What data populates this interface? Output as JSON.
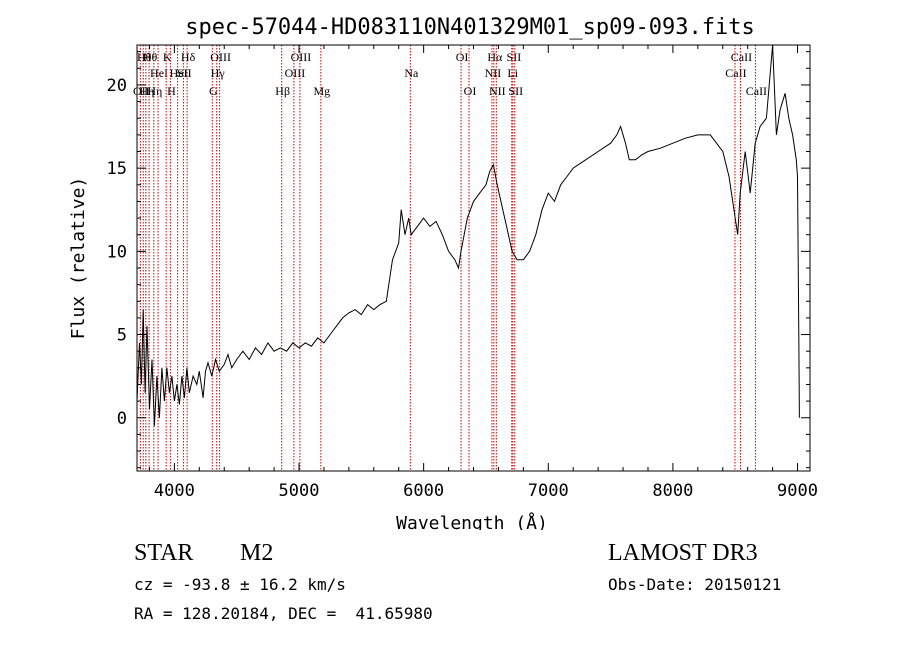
{
  "chart_data": {
    "type": "line",
    "title": "spec-57044-HD083110N401329M01_sp09-093.fits",
    "xlabel": "Wavelength (Å)",
    "ylabel": "Flux (relative)",
    "xlim": [
      3700,
      9100
    ],
    "ylim": [
      -3.2,
      22.4
    ],
    "xticks": [
      4000,
      5000,
      6000,
      7000,
      8000,
      9000
    ],
    "yticks": [
      0,
      5,
      10,
      15,
      20
    ],
    "grid": false,
    "series": [
      {
        "points": [
          [
            3700,
            1.0
          ],
          [
            3720,
            4.5
          ],
          [
            3735,
            2.0
          ],
          [
            3750,
            6.5
          ],
          [
            3765,
            1.5
          ],
          [
            3780,
            5.5
          ],
          [
            3800,
            0.5
          ],
          [
            3820,
            3.5
          ],
          [
            3840,
            -0.5
          ],
          [
            3860,
            2.5
          ],
          [
            3880,
            0.0
          ],
          [
            3900,
            3.0
          ],
          [
            3920,
            1.0
          ],
          [
            3940,
            3.0
          ],
          [
            3960,
            1.5
          ],
          [
            3980,
            2.5
          ],
          [
            4000,
            1.0
          ],
          [
            4020,
            2.0
          ],
          [
            4040,
            0.8
          ],
          [
            4060,
            2.5
          ],
          [
            4080,
            1.2
          ],
          [
            4100,
            3.0
          ],
          [
            4120,
            1.5
          ],
          [
            4150,
            2.5
          ],
          [
            4180,
            2.0
          ],
          [
            4200,
            2.8
          ],
          [
            4230,
            1.2
          ],
          [
            4250,
            2.8
          ],
          [
            4270,
            3.3
          ],
          [
            4300,
            2.5
          ],
          [
            4330,
            3.5
          ],
          [
            4360,
            2.8
          ],
          [
            4400,
            3.2
          ],
          [
            4430,
            3.8
          ],
          [
            4460,
            3.0
          ],
          [
            4500,
            3.5
          ],
          [
            4550,
            4.0
          ],
          [
            4600,
            3.5
          ],
          [
            4650,
            4.2
          ],
          [
            4700,
            3.8
          ],
          [
            4750,
            4.5
          ],
          [
            4800,
            4.0
          ],
          [
            4850,
            4.2
          ],
          [
            4900,
            4.0
          ],
          [
            4950,
            4.5
          ],
          [
            5000,
            4.2
          ],
          [
            5050,
            4.5
          ],
          [
            5100,
            4.3
          ],
          [
            5150,
            4.8
          ],
          [
            5200,
            4.5
          ],
          [
            5250,
            5.0
          ],
          [
            5300,
            5.5
          ],
          [
            5350,
            6.0
          ],
          [
            5400,
            6.3
          ],
          [
            5450,
            6.5
          ],
          [
            5500,
            6.2
          ],
          [
            5550,
            6.8
          ],
          [
            5600,
            6.5
          ],
          [
            5650,
            6.8
          ],
          [
            5700,
            7.0
          ],
          [
            5750,
            9.5
          ],
          [
            5800,
            10.5
          ],
          [
            5820,
            12.5
          ],
          [
            5850,
            11.0
          ],
          [
            5880,
            12.0
          ],
          [
            5900,
            11.0
          ],
          [
            5950,
            11.5
          ],
          [
            6000,
            12.0
          ],
          [
            6050,
            11.5
          ],
          [
            6100,
            11.8
          ],
          [
            6150,
            11.0
          ],
          [
            6200,
            10.0
          ],
          [
            6250,
            9.5
          ],
          [
            6280,
            9.0
          ],
          [
            6300,
            10.0
          ],
          [
            6350,
            12.0
          ],
          [
            6400,
            13.0
          ],
          [
            6450,
            13.5
          ],
          [
            6500,
            14.0
          ],
          [
            6530,
            14.8
          ],
          [
            6560,
            15.2
          ],
          [
            6590,
            14.0
          ],
          [
            6620,
            13.0
          ],
          [
            6650,
            12.0
          ],
          [
            6680,
            11.0
          ],
          [
            6710,
            10.0
          ],
          [
            6750,
            9.5
          ],
          [
            6800,
            9.5
          ],
          [
            6850,
            10.0
          ],
          [
            6900,
            11.0
          ],
          [
            6950,
            12.5
          ],
          [
            7000,
            13.5
          ],
          [
            7050,
            13.0
          ],
          [
            7100,
            14.0
          ],
          [
            7150,
            14.5
          ],
          [
            7200,
            15.0
          ],
          [
            7300,
            15.5
          ],
          [
            7400,
            16.0
          ],
          [
            7500,
            16.5
          ],
          [
            7550,
            17.0
          ],
          [
            7580,
            17.5
          ],
          [
            7620,
            16.5
          ],
          [
            7650,
            15.5
          ],
          [
            7700,
            15.5
          ],
          [
            7750,
            15.8
          ],
          [
            7800,
            16.0
          ],
          [
            7900,
            16.2
          ],
          [
            8000,
            16.5
          ],
          [
            8100,
            16.8
          ],
          [
            8200,
            17.0
          ],
          [
            8300,
            17.0
          ],
          [
            8400,
            16.0
          ],
          [
            8450,
            14.5
          ],
          [
            8500,
            12.0
          ],
          [
            8520,
            11.0
          ],
          [
            8540,
            13.5
          ],
          [
            8580,
            16.0
          ],
          [
            8620,
            13.5
          ],
          [
            8660,
            16.5
          ],
          [
            8700,
            17.5
          ],
          [
            8750,
            18.0
          ],
          [
            8800,
            22.5
          ],
          [
            8830,
            17.0
          ],
          [
            8860,
            18.5
          ],
          [
            8900,
            19.5
          ],
          [
            8930,
            18.0
          ],
          [
            8960,
            17.0
          ],
          [
            8990,
            15.5
          ],
          [
            9000,
            14.5
          ],
          [
            9010,
            5.0
          ],
          [
            9015,
            0.0
          ]
        ]
      }
    ],
    "lines": [
      {
        "x": 3727,
        "label": "OII",
        "row": 2
      },
      {
        "x": 3750,
        "label": "Hθ",
        "row": 0
      },
      {
        "x": 3771,
        "label": "Hη",
        "row": 2
      },
      {
        "x": 3797,
        "label": "Hθ",
        "row": 0
      },
      {
        "x": 3835,
        "label": "Hη",
        "row": 2
      },
      {
        "x": 3869,
        "label": "HeI",
        "row": 1
      },
      {
        "x": 3934,
        "label": "K",
        "row": 0
      },
      {
        "x": 3968,
        "label": "H",
        "row": 2
      },
      {
        "x": 4026,
        "label": "HeI",
        "row": 1
      },
      {
        "x": 4072,
        "label": "SII",
        "row": 1
      },
      {
        "x": 4102,
        "label": "Hδ",
        "row": 0
      },
      {
        "x": 4304,
        "label": "G",
        "row": 2
      },
      {
        "x": 4340,
        "label": "Hγ",
        "row": 1
      },
      {
        "x": 4363,
        "label": "OIII",
        "row": 0
      },
      {
        "x": 4861,
        "label": "Hβ",
        "row": 2
      },
      {
        "x": 4959,
        "label": "OIII",
        "row": 1
      },
      {
        "x": 5007,
        "label": "OIII",
        "row": 0
      },
      {
        "x": 5175,
        "label": "Mg",
        "row": 2
      },
      {
        "x": 5893,
        "label": "Na",
        "row": 1
      },
      {
        "x": 6300,
        "label": "OI",
        "row": 0
      },
      {
        "x": 6364,
        "label": "OI",
        "row": 2
      },
      {
        "x": 6548,
        "label": "NII",
        "row": 1
      },
      {
        "x": 6563,
        "label": "Hα",
        "row": 0
      },
      {
        "x": 6583,
        "label": "NII",
        "row": 2
      },
      {
        "x": 6707,
        "label": "Li",
        "row": 1
      },
      {
        "x": 6716,
        "label": "SII",
        "row": 0
      },
      {
        "x": 6731,
        "label": "SII",
        "row": 2
      },
      {
        "x": 8498,
        "label": "CaII",
        "row": 1
      },
      {
        "x": 8542,
        "label": "CaII",
        "row": 0
      },
      {
        "x": 8662,
        "label": "CaII",
        "row": 2
      }
    ]
  },
  "info": {
    "object_class": "STAR",
    "subclass": "M2",
    "survey": "LAMOST DR3",
    "redshift": "cz = -93.8 ± 16.2 km/s",
    "obs_date": "Obs-Date: 20150121",
    "coords": "RA = 128.20184, DEC =  41.65980"
  },
  "colors": {
    "spectrum": "#000000",
    "line_markers": "#cc0000",
    "text": "#000000"
  }
}
